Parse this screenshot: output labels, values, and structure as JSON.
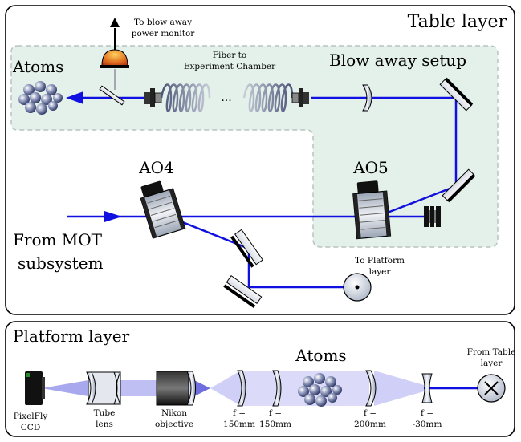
{
  "table_layer": {
    "title": "Table layer",
    "blow_away_monitor": [
      "To blow away",
      "power monitor"
    ],
    "fiber_label": [
      "Fiber to",
      "Experiment Chamber"
    ],
    "fiber_ellipsis": "...",
    "atoms": "Atoms",
    "blow_away_setup": "Blow away setup",
    "ao4": "AO4",
    "ao5": "AO5",
    "from_mot": [
      "From MOT",
      "subsystem"
    ],
    "to_platform": [
      "To Platform",
      "layer"
    ]
  },
  "platform_layer": {
    "title": "Platform layer",
    "atoms": "Atoms",
    "from_table": [
      "From Table",
      "layer"
    ],
    "pixelfly": [
      "PixelFly",
      "CCD"
    ],
    "tube_lens": [
      "Tube",
      "lens"
    ],
    "nikon": [
      "Nikon",
      "objective"
    ],
    "lens1": [
      "f =",
      "150mm"
    ],
    "lens2": [
      "f =",
      "150mm"
    ],
    "lens3": [
      "f =",
      "200mm"
    ],
    "lens4": [
      "f =",
      "-30mm"
    ]
  },
  "colors": {
    "beam": "#1010e0",
    "shade": "#e3f1ea",
    "detector": "#e07020"
  }
}
